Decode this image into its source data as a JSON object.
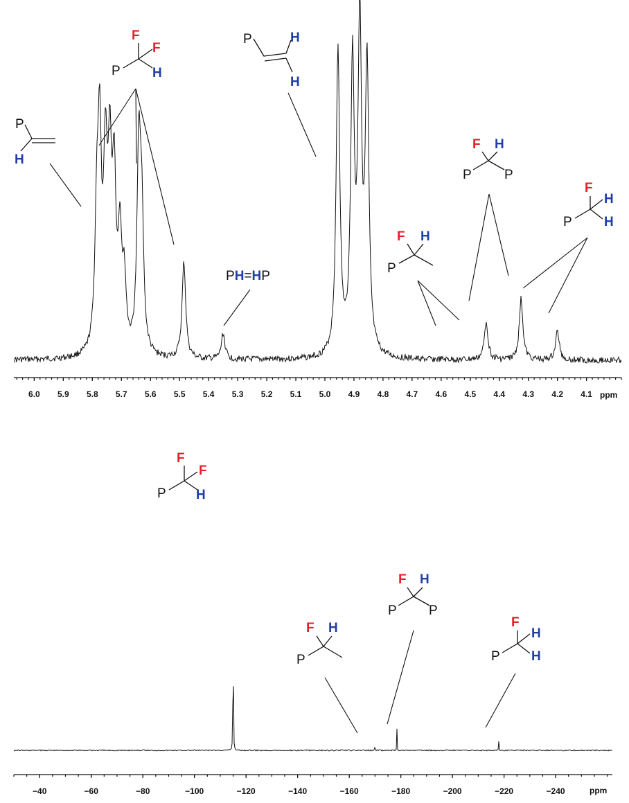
{
  "chart_data": [
    {
      "type": "line",
      "name_hint": "proton",
      "xlabel": "ppm",
      "xlim": [
        6.07,
        3.98
      ],
      "x_ticks": [
        "6.0",
        "5.9",
        "5.8",
        "5.7",
        "5.6",
        "5.5",
        "5.4",
        "5.3",
        "5.2",
        "5.1",
        "5.0",
        "4.9",
        "4.8",
        "4.7",
        "4.6",
        "4.5",
        "4.4",
        "4.3",
        "4.2",
        "4.1"
      ],
      "peaks": [
        {
          "x": 5.785,
          "h": 0.36
        },
        {
          "x": 5.775,
          "h": 0.62
        },
        {
          "x": 5.755,
          "h": 0.55
        },
        {
          "x": 5.74,
          "h": 0.53
        },
        {
          "x": 5.725,
          "h": 0.5
        },
        {
          "x": 5.705,
          "h": 0.34
        },
        {
          "x": 5.69,
          "h": 0.2
        },
        {
          "x": 5.64,
          "h": 0.62
        },
        {
          "x": 5.63,
          "h": 0.38
        },
        {
          "x": 5.485,
          "h": 0.3
        },
        {
          "x": 5.35,
          "h": 0.08
        },
        {
          "x": 4.955,
          "h": 0.95
        },
        {
          "x": 4.905,
          "h": 0.88
        },
        {
          "x": 4.88,
          "h": 1.0
        },
        {
          "x": 4.855,
          "h": 0.88
        },
        {
          "x": 4.445,
          "h": 0.12
        },
        {
          "x": 4.325,
          "h": 0.19
        },
        {
          "x": 4.2,
          "h": 0.09
        }
      ],
      "annotations": [
        {
          "id": "vinyl-ch",
          "atoms": [
            "P",
            "H"
          ]
        },
        {
          "id": "pcf2h",
          "atoms": [
            "F",
            "F",
            "P",
            "H"
          ]
        },
        {
          "id": "vinyl-ch2",
          "atoms": [
            "P",
            "H",
            "H"
          ]
        },
        {
          "id": "phhp",
          "atoms": [
            "P",
            "H",
            "=",
            "H",
            "P"
          ]
        },
        {
          "id": "pchf-methyl",
          "atoms": [
            "F",
            "H",
            "P"
          ]
        },
        {
          "id": "pchfp",
          "atoms": [
            "F",
            "H",
            "P",
            "P"
          ]
        },
        {
          "id": "pch2f",
          "atoms": [
            "F",
            "H",
            "P",
            "H"
          ]
        }
      ]
    },
    {
      "type": "line",
      "name_hint": "fluorine",
      "xlabel": "ppm",
      "xlim": [
        -30,
        -262
      ],
      "x_ticks": [
        "-40",
        "-60",
        "-80",
        "-100",
        "-120",
        "-140",
        "-160",
        "-180",
        "-200",
        "-220",
        "-240"
      ],
      "peaks": [
        {
          "x": -115,
          "h": 1.0
        },
        {
          "x": -170,
          "h": 0.03
        },
        {
          "x": -178.5,
          "h": 0.07
        },
        {
          "x": -218,
          "h": 0.04
        }
      ],
      "annotations": [
        {
          "id": "pcf2h",
          "atoms": [
            "F",
            "F",
            "P",
            "H"
          ]
        },
        {
          "id": "pchf-methyl",
          "atoms": [
            "F",
            "H",
            "P"
          ]
        },
        {
          "id": "pchfp",
          "atoms": [
            "F",
            "H",
            "P",
            "P"
          ]
        },
        {
          "id": "pch2f",
          "atoms": [
            "F",
            "H",
            "P",
            "H"
          ]
        }
      ]
    }
  ],
  "colors": {
    "fluorine": "#e5202a",
    "hydrogen": "#1f3fa6",
    "phosphorus": "#111111"
  }
}
